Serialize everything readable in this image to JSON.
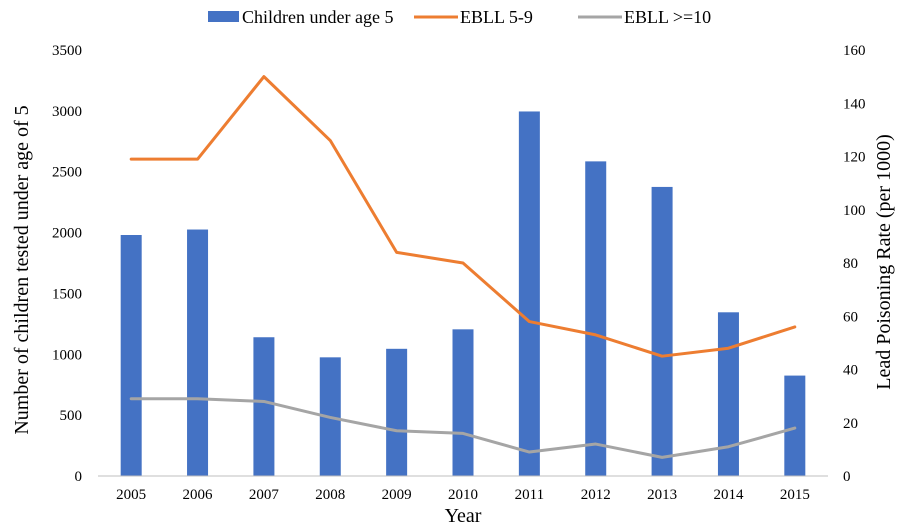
{
  "chart_data": {
    "type": "bar",
    "title": "",
    "categories": [
      "2005",
      "2006",
      "2007",
      "2008",
      "2009",
      "2010",
      "2011",
      "2012",
      "2013",
      "2014",
      "2015"
    ],
    "xlabel": "Year",
    "ylabel": "Number of children tested under age of 5",
    "y2label": "Lead Poisoning Rate (per 1000)",
    "ylim": [
      0,
      3500
    ],
    "y2lim": [
      0,
      160
    ],
    "yticks": [
      0,
      500,
      1000,
      1500,
      2000,
      2500,
      3000,
      3500
    ],
    "y2ticks": [
      0,
      20,
      40,
      60,
      80,
      100,
      120,
      140,
      160
    ],
    "grid": false,
    "legend_position": "top",
    "series": [
      {
        "name": "Children under age 5",
        "type": "bar",
        "axis": "left",
        "color": "#4472C4",
        "values": [
          1980,
          2025,
          1140,
          975,
          1045,
          1205,
          2995,
          2585,
          2375,
          1345,
          825
        ]
      },
      {
        "name": "EBLL 5-9",
        "type": "line",
        "axis": "right",
        "color": "#ED7D31",
        "values": [
          119,
          119,
          150,
          126,
          84,
          80,
          58,
          53,
          45,
          48,
          56
        ]
      },
      {
        "name": "EBLL >=10",
        "type": "line",
        "axis": "right",
        "color": "#A5A5A5",
        "values": [
          29,
          29,
          28,
          22,
          17,
          16,
          9,
          12,
          7,
          11,
          18
        ]
      }
    ]
  }
}
